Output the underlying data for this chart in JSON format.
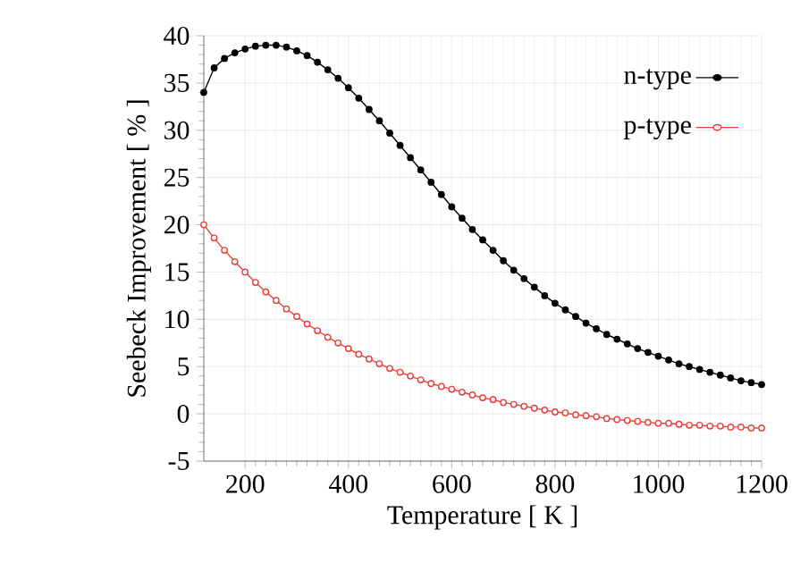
{
  "chart_data": {
    "type": "line",
    "xlabel": "Temperature [ K ]",
    "ylabel": "Seebeck Improvement [ % ]",
    "x": [
      120,
      140,
      160,
      180,
      200,
      220,
      240,
      260,
      280,
      300,
      320,
      340,
      360,
      380,
      400,
      420,
      440,
      460,
      480,
      500,
      520,
      540,
      560,
      580,
      600,
      620,
      640,
      660,
      680,
      700,
      720,
      740,
      760,
      780,
      800,
      820,
      840,
      860,
      880,
      900,
      920,
      940,
      960,
      980,
      1000,
      1020,
      1040,
      1060,
      1080,
      1100,
      1120,
      1140,
      1160,
      1180,
      1200
    ],
    "series": [
      {
        "name": "n-type",
        "color": "#000000",
        "values": [
          34.0,
          36.6,
          37.6,
          38.2,
          38.6,
          38.9,
          39.0,
          39.0,
          38.8,
          38.4,
          37.9,
          37.2,
          36.4,
          35.5,
          34.5,
          33.4,
          32.2,
          31.0,
          29.7,
          28.4,
          27.1,
          25.8,
          24.5,
          23.2,
          21.9,
          20.7,
          19.5,
          18.4,
          17.3,
          16.2,
          15.2,
          14.3,
          13.4,
          12.5,
          11.7,
          11.0,
          10.3,
          9.6,
          9.0,
          8.4,
          7.9,
          7.4,
          6.9,
          6.5,
          6.1,
          5.7,
          5.3,
          5.0,
          4.7,
          4.4,
          4.1,
          3.8,
          3.5,
          3.3,
          3.1
        ]
      },
      {
        "name": "p-type",
        "color": "#e8403c",
        "values": [
          20.0,
          18.6,
          17.3,
          16.1,
          15.0,
          13.9,
          12.9,
          12.0,
          11.1,
          10.3,
          9.5,
          8.8,
          8.1,
          7.5,
          6.9,
          6.3,
          5.8,
          5.3,
          4.8,
          4.4,
          4.0,
          3.6,
          3.2,
          2.9,
          2.6,
          2.3,
          2.0,
          1.7,
          1.5,
          1.2,
          1.0,
          0.8,
          0.6,
          0.4,
          0.2,
          0.1,
          -0.1,
          -0.2,
          -0.3,
          -0.5,
          -0.6,
          -0.7,
          -0.8,
          -0.9,
          -1.0,
          -1.0,
          -1.1,
          -1.2,
          -1.2,
          -1.3,
          -1.3,
          -1.4,
          -1.4,
          -1.5,
          -1.5
        ]
      }
    ],
    "xlim": [
      120,
      1200
    ],
    "ylim": [
      -5,
      40
    ],
    "xticks": [
      200,
      400,
      600,
      800,
      1000,
      1200
    ],
    "yticks": [
      -5,
      0,
      5,
      10,
      15,
      20,
      25,
      30,
      35,
      40
    ],
    "grid": true,
    "legend": "top right",
    "marker": "circle",
    "line_style": "solid"
  }
}
